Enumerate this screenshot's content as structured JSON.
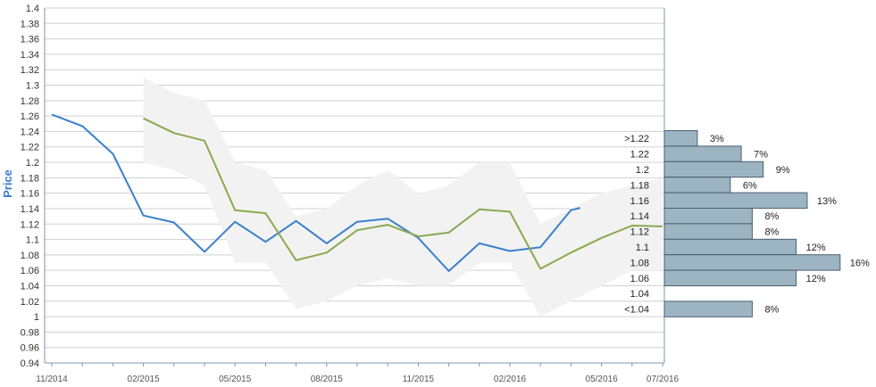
{
  "chart_data": {
    "type": "line",
    "ylabel": "Price",
    "ylim": [
      0.94,
      1.4
    ],
    "y_ticks": [
      "0.94",
      "0.96",
      "0.98",
      "1",
      "1.02",
      "1.04",
      "1.06",
      "1.08",
      "1.1",
      "1.12",
      "1.14",
      "1.16",
      "1.18",
      "1.2",
      "1.22",
      "1.24",
      "1.26",
      "1.28",
      "1.3",
      "1.32",
      "1.34",
      "1.36",
      "1.38",
      "1.4"
    ],
    "x_ticks": [
      "11/2014",
      "02/2015",
      "05/2015",
      "08/2015",
      "11/2015",
      "02/2016",
      "05/2016",
      "07/2016"
    ],
    "x_range": [
      "2014-11",
      "2016-07"
    ],
    "grid": true,
    "colors": {
      "actual": "#3a80cc",
      "forecast": "#8aaa50",
      "band": "#f2f2f2",
      "bar_fill": "#9db4c3",
      "bar_stroke": "#4a6070",
      "grid": "#d0d0d0",
      "axis": "#7a9ab0"
    },
    "series": [
      {
        "key": "actual",
        "x": [
          "2014-11",
          "2014-12",
          "2015-01",
          "2015-02",
          "2015-03",
          "2015-04",
          "2015-05",
          "2015-06",
          "2015-07",
          "2015-08",
          "2015-09",
          "2015-10",
          "2015-11",
          "2015-12",
          "2016-01",
          "2016-02",
          "2016-03",
          "2016-04",
          "2016-04-10"
        ],
        "values": [
          1.262,
          1.247,
          1.211,
          1.131,
          1.122,
          1.084,
          1.123,
          1.097,
          1.124,
          1.095,
          1.123,
          1.127,
          1.102,
          1.059,
          1.095,
          1.085,
          1.09,
          1.138,
          1.141
        ]
      },
      {
        "key": "forecast",
        "x": [
          "2015-02",
          "2015-03",
          "2015-04",
          "2015-05",
          "2015-06",
          "2015-07",
          "2015-08",
          "2015-09",
          "2015-10",
          "2015-11",
          "2015-12",
          "2016-01",
          "2016-02",
          "2016-03",
          "2016-04",
          "2016-05",
          "2016-06",
          "2016-07"
        ],
        "values": [
          1.257,
          1.238,
          1.228,
          1.138,
          1.134,
          1.073,
          1.083,
          1.112,
          1.119,
          1.104,
          1.109,
          1.139,
          1.136,
          1.062,
          1.083,
          1.102,
          1.118,
          1.117
        ]
      }
    ],
    "band": {
      "x": [
        "2015-02",
        "2015-03",
        "2015-04",
        "2015-05",
        "2015-06",
        "2015-07",
        "2015-08",
        "2015-09",
        "2015-10",
        "2015-11",
        "2015-12",
        "2016-01",
        "2016-02",
        "2016-03",
        "2016-04",
        "2016-05",
        "2016-06",
        "2016-07"
      ],
      "upper": [
        1.31,
        1.29,
        1.28,
        1.2,
        1.19,
        1.13,
        1.14,
        1.17,
        1.19,
        1.16,
        1.17,
        1.2,
        1.2,
        1.12,
        1.14,
        1.16,
        1.17,
        1.18
      ],
      "lower": [
        1.2,
        1.19,
        1.17,
        1.07,
        1.07,
        1.01,
        1.02,
        1.04,
        1.05,
        1.04,
        1.04,
        1.07,
        1.07,
        1.0,
        1.02,
        1.04,
        1.06,
        1.06
      ]
    },
    "distribution": {
      "labels": [
        ">1.22",
        "1.22",
        "1.2",
        "1.18",
        "1.16",
        "1.14",
        "1.12",
        "1.1",
        "1.08",
        "1.06",
        "1.04",
        "<1.04"
      ],
      "values": [
        3,
        7,
        9,
        6,
        13,
        8,
        8,
        12,
        16,
        12,
        null,
        8
      ],
      "value_labels": [
        "3%",
        "7%",
        "9%",
        "6%",
        "13%",
        "8%",
        "8%",
        "12%",
        "16%",
        "12%",
        "",
        "8%"
      ]
    }
  }
}
